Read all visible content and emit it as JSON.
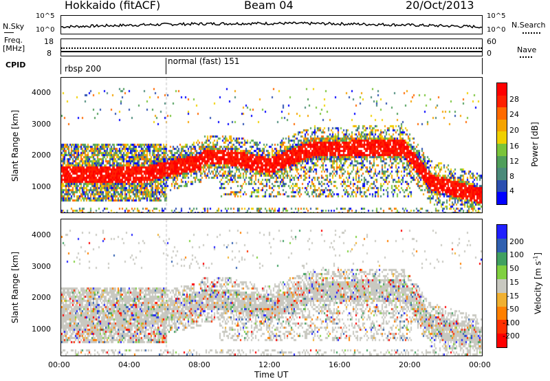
{
  "header": {
    "radar": "Hokkaido (fitACF)",
    "beam": "Beam 04",
    "date": "20/Oct/2013"
  },
  "nsky_panel": {
    "left_label": "N.Sky",
    "right_label": "N.Search",
    "left_ticks": [
      "10^5",
      "10^0"
    ],
    "right_ticks": [
      "10^5",
      "10^0"
    ]
  },
  "freq_panel": {
    "left_label_top": "Freq.",
    "left_label_bottom": "[MHz]",
    "right_label": "Nave",
    "left_ticks": [
      "18",
      "8"
    ],
    "right_ticks": [
      "60",
      "0"
    ]
  },
  "cpid_panel": {
    "label": "CPID",
    "modes": [
      {
        "name": "rbsp 200",
        "start_hour": 0
      },
      {
        "name": "normal (fast) 151",
        "start_hour": 6
      }
    ]
  },
  "chart_data": [
    {
      "type": "heatmap",
      "panel": "power",
      "ylabel": "Slant Range [km]",
      "yticks": [
        "1000",
        "2000",
        "3000",
        "4000"
      ],
      "ylim": [
        200,
        4500
      ],
      "xlim_hours": [
        0,
        24
      ],
      "colorbar": {
        "label": "Power [dB]",
        "ticks": [
          "4",
          "8",
          "12",
          "16",
          "20",
          "24",
          "28"
        ],
        "colors": [
          "#0000ff",
          "#2b4fb0",
          "#4a8a7a",
          "#4f9e5a",
          "#7ac43a",
          "#f0d000",
          "#f5a300",
          "#ff6a00",
          "#ff2000",
          "#ff0000"
        ]
      }
    },
    {
      "type": "heatmap",
      "panel": "velocity",
      "ylabel": "Slant Range [km]",
      "yticks": [
        "1000",
        "2000",
        "3000",
        "4000"
      ],
      "ylim": [
        200,
        4500
      ],
      "xlim_hours": [
        0,
        24
      ],
      "colorbar": {
        "label": "Velocity [m s^-1]",
        "ticks": [
          "200",
          "100",
          "50",
          "15",
          "-15",
          "-50",
          "-100",
          "-200"
        ],
        "colors": [
          "#2020ff",
          "#3060b0",
          "#40a060",
          "#80d040",
          "#c8c8c0",
          "#f0b030",
          "#ff8000",
          "#ff3000",
          "#ff0000"
        ]
      }
    }
  ],
  "xaxis": {
    "label": "Time UT",
    "ticks": [
      "00:00",
      "04:00",
      "08:00",
      "12:00",
      "16:00",
      "20:00",
      "00:00"
    ]
  }
}
